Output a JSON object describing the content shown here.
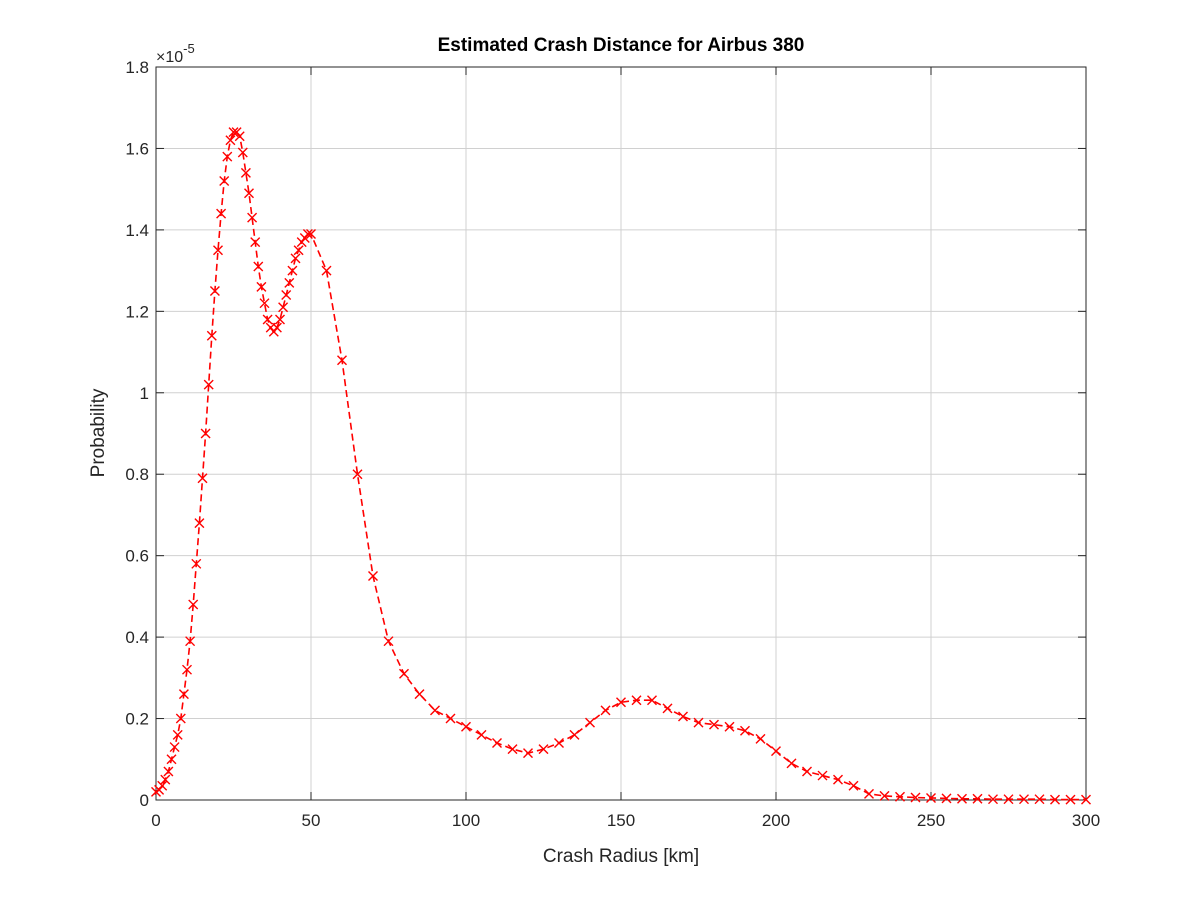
{
  "chart_data": {
    "type": "line",
    "title": "Estimated Crash Distance for Airbus 380",
    "xlabel": "Crash Radius [km]",
    "ylabel": "Probability",
    "y_exponent_label": "×10",
    "y_exponent_power": "-5",
    "xlim": [
      0,
      300
    ],
    "ylim": [
      0,
      1.8
    ],
    "x_ticks": [
      0,
      50,
      100,
      150,
      200,
      250,
      300
    ],
    "y_ticks": [
      0,
      0.2,
      0.4,
      0.6,
      0.8,
      1,
      1.2,
      1.4,
      1.6,
      1.8
    ],
    "x_tick_labels": [
      "0",
      "50",
      "100",
      "150",
      "200",
      "250",
      "300"
    ],
    "y_tick_labels": [
      "0",
      "0.2",
      "0.4",
      "0.6",
      "0.8",
      "1",
      "1.2",
      "1.4",
      "1.6",
      "1.8"
    ],
    "grid": true,
    "series_color": "#ff0000",
    "line_style": "dashed",
    "marker": "x",
    "x": [
      0,
      1,
      2,
      3,
      4,
      5,
      6,
      7,
      8,
      9,
      10,
      11,
      12,
      13,
      14,
      15,
      16,
      17,
      18,
      19,
      20,
      21,
      22,
      23,
      24,
      25,
      26,
      27,
      28,
      29,
      30,
      31,
      32,
      33,
      34,
      35,
      36,
      37,
      38,
      39,
      40,
      41,
      42,
      43,
      44,
      45,
      46,
      47,
      48,
      49,
      50,
      55,
      60,
      65,
      70,
      75,
      80,
      85,
      90,
      95,
      100,
      105,
      110,
      115,
      120,
      125,
      130,
      135,
      140,
      145,
      150,
      155,
      160,
      165,
      170,
      175,
      180,
      185,
      190,
      195,
      200,
      205,
      210,
      215,
      220,
      225,
      230,
      235,
      240,
      245,
      250,
      255,
      260,
      265,
      270,
      275,
      280,
      285,
      290,
      295,
      300
    ],
    "y": [
      0.02,
      0.025,
      0.035,
      0.05,
      0.07,
      0.1,
      0.13,
      0.16,
      0.2,
      0.26,
      0.32,
      0.39,
      0.48,
      0.58,
      0.68,
      0.79,
      0.9,
      1.02,
      1.14,
      1.25,
      1.35,
      1.44,
      1.52,
      1.58,
      1.62,
      1.64,
      1.64,
      1.63,
      1.59,
      1.54,
      1.49,
      1.43,
      1.37,
      1.31,
      1.26,
      1.22,
      1.18,
      1.16,
      1.15,
      1.16,
      1.18,
      1.21,
      1.24,
      1.27,
      1.3,
      1.33,
      1.35,
      1.37,
      1.38,
      1.39,
      1.39,
      1.3,
      1.08,
      0.8,
      0.55,
      0.39,
      0.31,
      0.26,
      0.22,
      0.2,
      0.18,
      0.16,
      0.14,
      0.125,
      0.115,
      0.125,
      0.14,
      0.16,
      0.19,
      0.22,
      0.24,
      0.245,
      0.245,
      0.225,
      0.205,
      0.19,
      0.185,
      0.18,
      0.17,
      0.15,
      0.12,
      0.09,
      0.07,
      0.06,
      0.05,
      0.035,
      0.015,
      0.01,
      0.008,
      0.006,
      0.005,
      0.004,
      0.003,
      0.003,
      0.002,
      0.002,
      0.002,
      0.002,
      0.001,
      0.001,
      0.001
    ]
  }
}
